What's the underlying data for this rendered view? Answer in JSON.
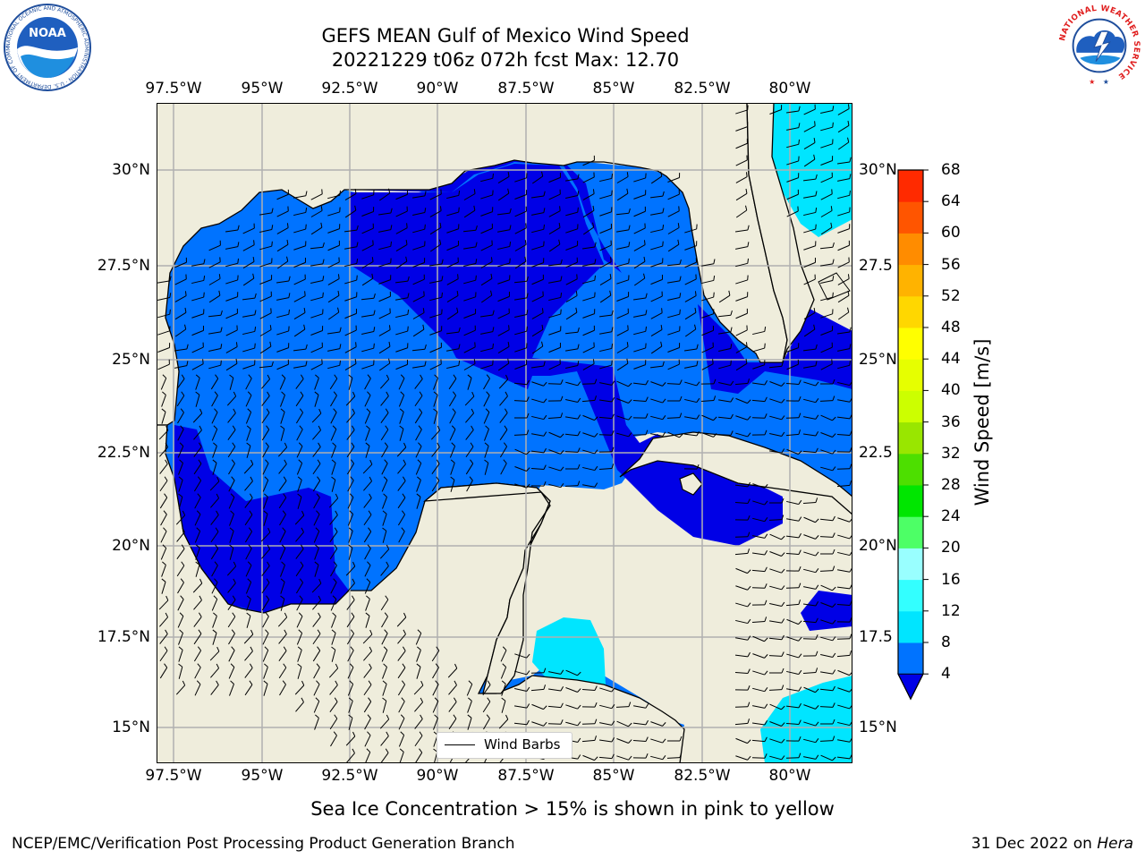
{
  "header": {
    "title_line1": "GEFS MEAN Gulf of Mexico Wind Speed",
    "title_line2": "20221229 t06z 072h fcst   Max: 12.70"
  },
  "logos": {
    "noaa_text": "NOAA",
    "noaa_ring_text": "NATIONAL OCEANIC AND ATMOSPHERIC ADMINISTRATION · U.S. DEPARTMENT OF COMMERCE",
    "nws_ring_text": "NATIONAL WEATHER SERVICE"
  },
  "map": {
    "lon_range": [
      -98.5,
      -78.6
    ],
    "lat_range": [
      14.0,
      31.8
    ],
    "lon_ticks": [
      "97.5°W",
      "95°W",
      "92.5°W",
      "90°W",
      "87.5°W",
      "85°W",
      "82.5°W",
      "80°W"
    ],
    "lat_ticks_left": [
      "30°N",
      "27.5°N",
      "25°N",
      "22.5°N",
      "20°N",
      "17.5°N",
      "15°N"
    ],
    "lat_ticks_right": [
      "30°N",
      "27.5",
      "25°N",
      "22.5",
      "20°N",
      "17.5",
      "15°N"
    ],
    "land_color": "#efeddc",
    "grid_color": "#b0b0b0",
    "legend_label": "Wind Barbs"
  },
  "colorbar": {
    "label": "Wind Speed [m/s]",
    "ticks": [
      "4",
      "8",
      "12",
      "16",
      "20",
      "24",
      "28",
      "32",
      "36",
      "40",
      "44",
      "48",
      "52",
      "56",
      "60",
      "64",
      "68"
    ],
    "colors": [
      "#0073ff",
      "#00e5ff",
      "#33ffff",
      "#99ffff",
      "#4dff66",
      "#00e600",
      "#4ddf00",
      "#99e600",
      "#ccff00",
      "#e6ff00",
      "#ffff00",
      "#ffd700",
      "#ffb300",
      "#ff8c00",
      "#ff5500",
      "#ff2a00"
    ],
    "under_color": "#0000e6"
  },
  "caption": "Sea Ice Concentration > 15% is shown in pink to yellow",
  "footer": {
    "left": "NCEP/EMC/Verification Post Processing Product Generation Branch",
    "date": "31 Dec 2022 on ",
    "machine": "Hera"
  }
}
